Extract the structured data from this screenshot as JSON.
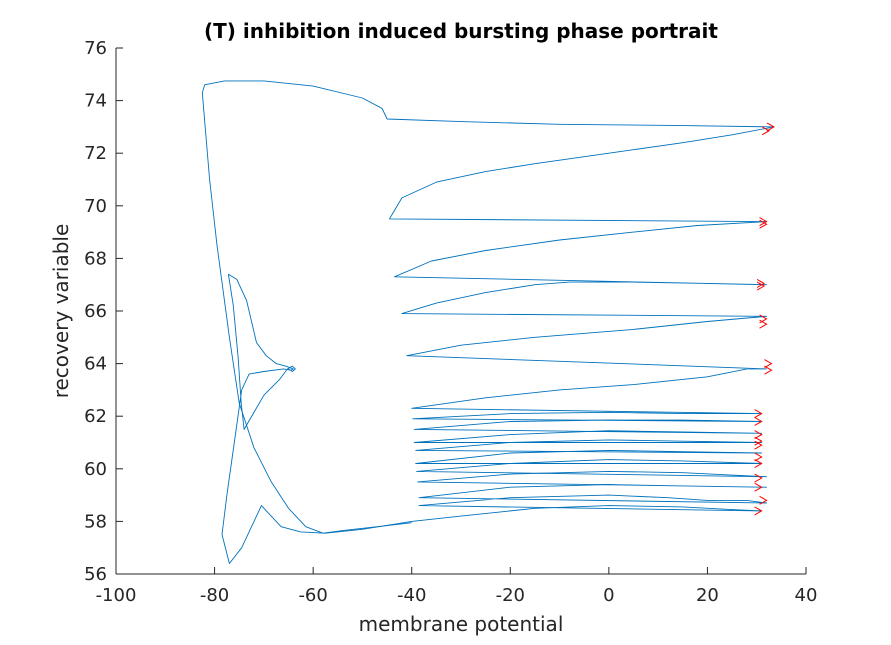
{
  "chart_data": {
    "type": "line",
    "title": "(T) inhibition induced bursting phase portrait",
    "xlabel": "membrane potential",
    "ylabel": "recovery variable",
    "xlim": [
      -100,
      40
    ],
    "ylim": [
      56,
      76
    ],
    "xticks": [
      -100,
      -80,
      -60,
      -40,
      -20,
      0,
      20,
      40
    ],
    "yticks": [
      56,
      58,
      60,
      62,
      64,
      66,
      68,
      70,
      72,
      74,
      76
    ],
    "grid": false,
    "box": false,
    "colors": {
      "trajectory": "#0072BD",
      "arrows": "#FF0000",
      "axis": "#262626"
    },
    "series": [
      {
        "points": [
          [
            -65.0,
            63.8
          ],
          [
            -64.2,
            63.7
          ],
          [
            -63.6,
            63.8
          ],
          [
            -64.2,
            63.9
          ],
          [
            -65.2,
            63.8
          ],
          [
            -66.8,
            63.4
          ],
          [
            -70.0,
            62.8
          ],
          [
            -74.0,
            61.5
          ],
          [
            -74.6,
            62.5
          ],
          [
            -75.2,
            64.2
          ],
          [
            -76.2,
            66.2
          ],
          [
            -77.2,
            67.4
          ],
          [
            -75.5,
            67.2
          ],
          [
            -73.5,
            66.4
          ],
          [
            -71.5,
            64.8
          ],
          [
            -69.5,
            64.3
          ],
          [
            -67.5,
            64.0
          ],
          [
            -65.5,
            63.9
          ],
          [
            -64.0,
            63.8
          ],
          [
            -64.5,
            63.75
          ],
          [
            -66.0,
            63.8
          ],
          [
            -70.0,
            63.7
          ],
          [
            -73.0,
            63.6
          ],
          [
            -74.5,
            63.0
          ],
          [
            -76.0,
            61.0
          ],
          [
            -77.5,
            59.0
          ],
          [
            -78.5,
            57.5
          ],
          [
            -77.0,
            56.4
          ],
          [
            -74.5,
            57.0
          ],
          [
            -70.5,
            58.6
          ],
          [
            -66.5,
            57.8
          ],
          [
            -62.5,
            57.6
          ],
          [
            -57.5,
            57.55
          ],
          [
            -50.0,
            57.7
          ],
          [
            -40.0,
            58.0
          ],
          [
            -30.0,
            58.2
          ],
          [
            -15.0,
            58.5
          ],
          [
            0.0,
            58.6
          ],
          [
            15.0,
            58.55
          ],
          [
            25.0,
            58.45
          ],
          [
            31.0,
            58.4
          ]
        ]
      },
      {
        "points": [
          [
            31.0,
            58.4
          ],
          [
            -38.5,
            58.6
          ],
          [
            -20.0,
            58.9
          ],
          [
            0.0,
            59.0
          ],
          [
            12.0,
            58.9
          ],
          [
            20.0,
            58.8
          ],
          [
            28.0,
            58.8
          ],
          [
            32.0,
            58.7
          ],
          [
            -38.5,
            58.9
          ],
          [
            -20.0,
            59.3
          ],
          [
            0.0,
            59.4
          ],
          [
            15.0,
            59.35
          ],
          [
            32.0,
            59.3
          ],
          [
            -38.8,
            59.5
          ],
          [
            -20.0,
            59.8
          ],
          [
            0.0,
            59.9
          ],
          [
            15.0,
            59.85
          ],
          [
            32.0,
            59.7
          ],
          [
            -39.0,
            59.9
          ],
          [
            -20.0,
            60.2
          ],
          [
            0.0,
            60.35
          ],
          [
            15.0,
            60.3
          ],
          [
            31.0,
            60.2
          ],
          [
            -39.2,
            60.2
          ],
          [
            -20.0,
            60.6
          ],
          [
            0.0,
            60.7
          ],
          [
            15.0,
            60.65
          ],
          [
            31.0,
            60.6
          ],
          [
            -39.2,
            60.7
          ],
          [
            -20.0,
            61.0
          ],
          [
            0.0,
            61.1
          ],
          [
            15.0,
            61.05
          ],
          [
            31.0,
            61.0
          ],
          [
            -39.5,
            61.0
          ],
          [
            -20.0,
            61.3
          ],
          [
            0.0,
            61.45
          ],
          [
            15.0,
            61.4
          ],
          [
            31.0,
            61.35
          ],
          [
            -39.5,
            61.5
          ],
          [
            -20.0,
            61.8
          ],
          [
            0.0,
            61.85
          ],
          [
            15.0,
            61.85
          ],
          [
            31.0,
            61.8
          ],
          [
            -39.8,
            61.9
          ],
          [
            -20.0,
            62.1
          ],
          [
            0.0,
            62.15
          ],
          [
            15.0,
            62.1
          ],
          [
            31.0,
            62.1
          ],
          [
            -40.0,
            62.3
          ],
          [
            -25.0,
            62.7
          ],
          [
            -10.0,
            63.0
          ],
          [
            5.0,
            63.2
          ],
          [
            20.0,
            63.5
          ],
          [
            28.0,
            63.8
          ],
          [
            32.0,
            63.8
          ],
          [
            -41.0,
            64.3
          ],
          [
            -30.0,
            64.7
          ],
          [
            -15.0,
            65.0
          ],
          [
            5.0,
            65.3
          ],
          [
            20.0,
            65.6
          ],
          [
            32.0,
            65.8
          ],
          [
            -42.0,
            65.9
          ],
          [
            -35.0,
            66.3
          ],
          [
            -25.0,
            66.7
          ],
          [
            -15.0,
            67.0
          ],
          [
            -8.0,
            67.1
          ],
          [
            5.0,
            67.1
          ],
          [
            20.0,
            67.05
          ],
          [
            32.0,
            67.0
          ],
          [
            -43.5,
            67.3
          ],
          [
            -36.0,
            67.9
          ],
          [
            -25.0,
            68.3
          ],
          [
            -10.0,
            68.7
          ],
          [
            5.0,
            69.0
          ],
          [
            18.0,
            69.25
          ],
          [
            32.0,
            69.4
          ],
          [
            -44.5,
            69.5
          ],
          [
            -42.0,
            70.3
          ],
          [
            -35.0,
            70.9
          ],
          [
            -25.0,
            71.3
          ],
          [
            -15.0,
            71.6
          ],
          [
            0.0,
            72.0
          ],
          [
            15.0,
            72.4
          ],
          [
            25.0,
            72.7
          ],
          [
            33.5,
            73.0
          ],
          [
            15.0,
            73.05
          ],
          [
            -10.0,
            73.1
          ],
          [
            -30.0,
            73.2
          ],
          [
            -45.0,
            73.3
          ],
          [
            -46.0,
            73.7
          ],
          [
            -50.0,
            74.1
          ],
          [
            -60.0,
            74.55
          ],
          [
            -70.0,
            74.75
          ],
          [
            -78.0,
            74.75
          ],
          [
            -82.0,
            74.6
          ],
          [
            -82.5,
            74.3
          ],
          [
            -81.0,
            71.0
          ],
          [
            -79.5,
            68.5
          ],
          [
            -77.0,
            65.0
          ],
          [
            -75.0,
            62.5
          ],
          [
            -72.0,
            60.8
          ],
          [
            -68.5,
            59.5
          ],
          [
            -65.0,
            58.5
          ],
          [
            -61.5,
            57.8
          ],
          [
            -58.0,
            57.55
          ],
          [
            -54.0,
            57.65
          ],
          [
            -47.0,
            57.8
          ],
          [
            -40.0,
            57.95
          ]
        ]
      }
    ],
    "arrows": [
      [
        33.5,
        73.0
      ],
      [
        32.5,
        72.85
      ],
      [
        32.0,
        69.4
      ],
      [
        32.0,
        69.3
      ],
      [
        31.5,
        67.05
      ],
      [
        31.5,
        66.95
      ],
      [
        32.0,
        65.7
      ],
      [
        32.0,
        65.5
      ],
      [
        33.0,
        64.0
      ],
      [
        33.0,
        63.75
      ],
      [
        31.0,
        62.1
      ],
      [
        31.0,
        61.8
      ],
      [
        31.0,
        61.3
      ],
      [
        31.0,
        61.05
      ],
      [
        31.0,
        60.9
      ],
      [
        31.0,
        60.45
      ],
      [
        31.0,
        60.2
      ],
      [
        31.0,
        59.65
      ],
      [
        31.0,
        59.3
      ],
      [
        32.0,
        58.8
      ],
      [
        31.0,
        58.4
      ]
    ]
  }
}
